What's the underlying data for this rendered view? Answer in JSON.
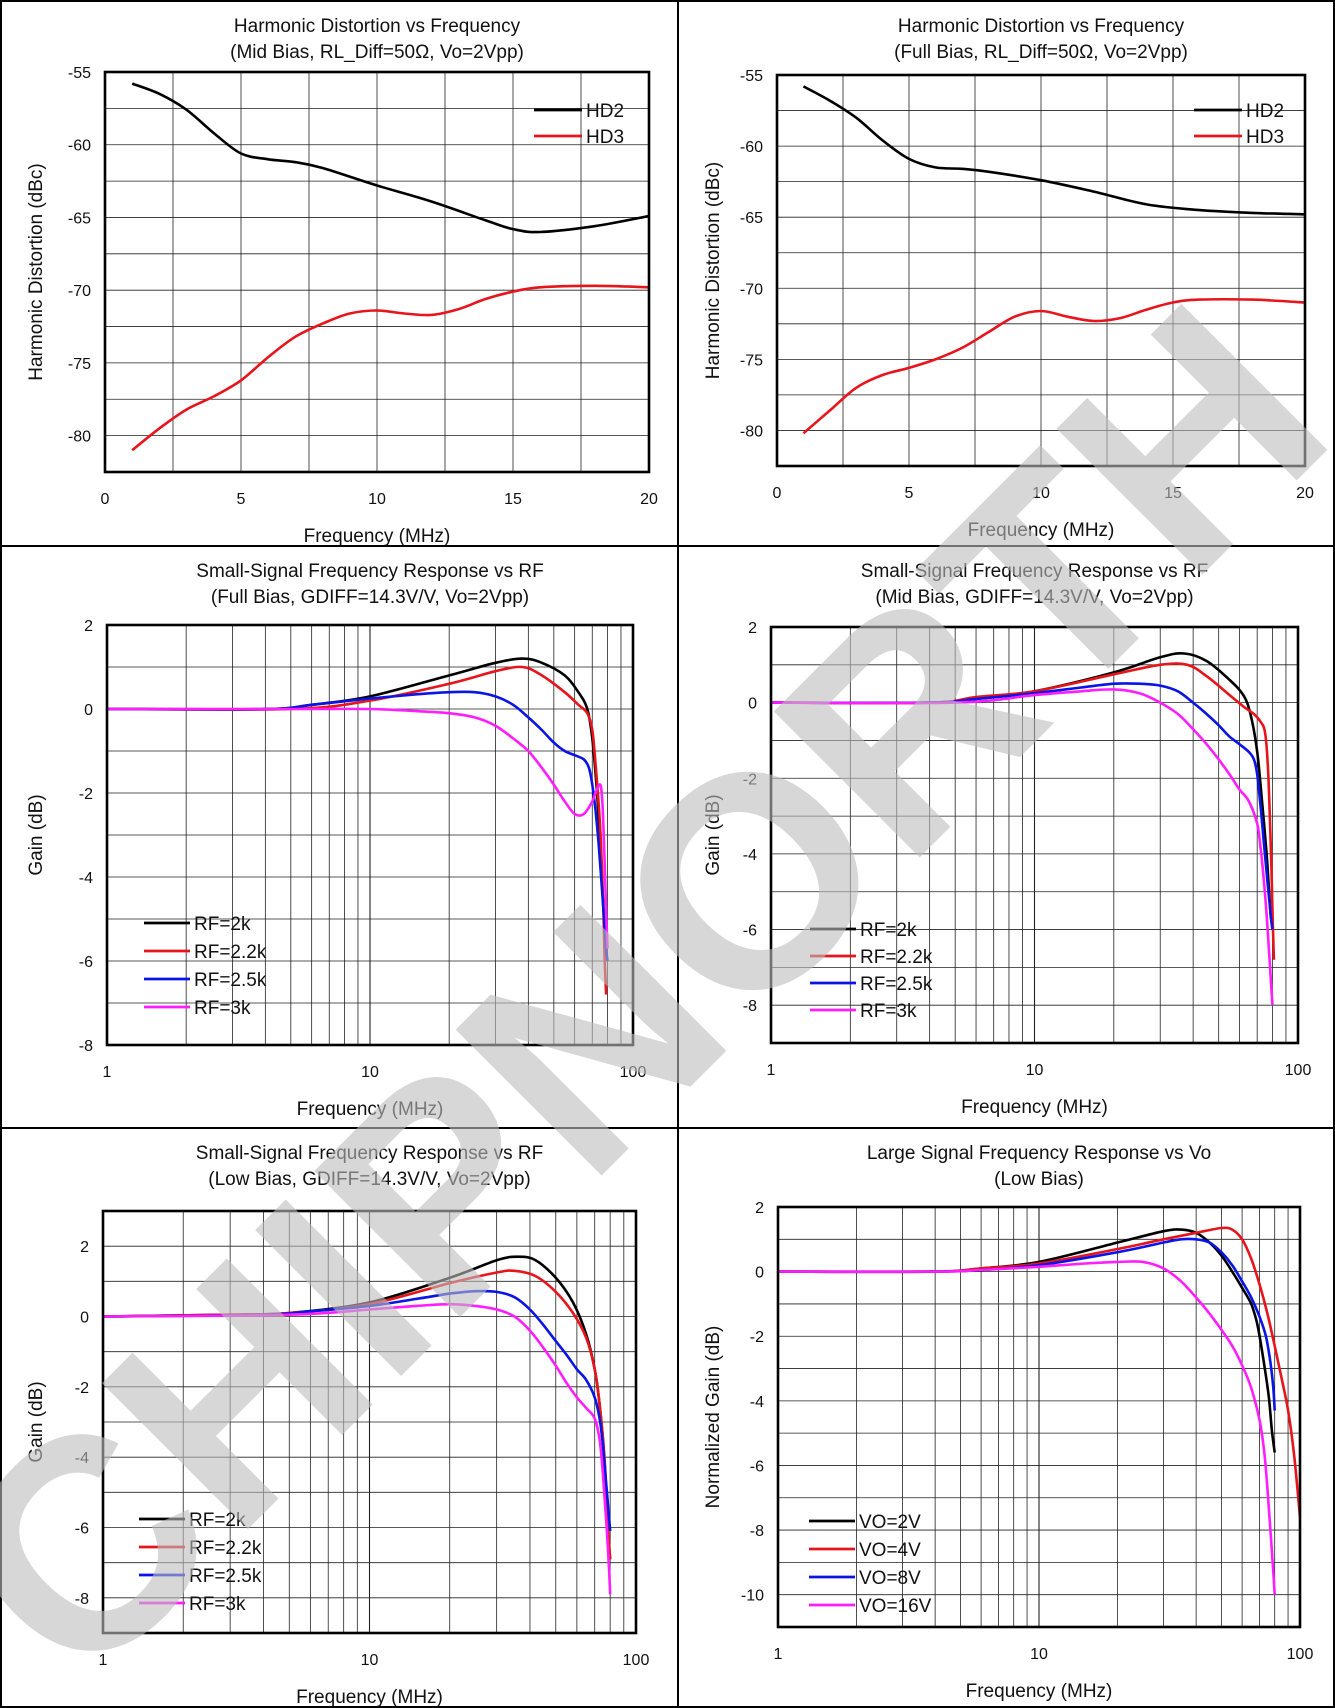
{
  "watermark": {
    "text": "CHIPNORTH",
    "color": "#bdbdbd"
  },
  "line_colors": {
    "black": "#000000",
    "red": "#e8141b",
    "blue": "#0a14e6",
    "magenta": "#ff1eff"
  },
  "chart_data": [
    {
      "type": "line",
      "title": "Harmonic Distortion vs Frequency",
      "subtitle": "(Mid Bias, RL_Diff=50Ω, Vo=2Vpp)",
      "xlabel": "Frequency (MHz)",
      "ylabel": "Harmonic Distortion (dBc)",
      "xscale": "linear",
      "xlim": [
        0,
        20
      ],
      "ylim": [
        -82.5,
        -55
      ],
      "xticks": [
        0,
        5,
        10,
        15,
        20
      ],
      "yticks": [
        -80,
        -75,
        -70,
        -65,
        -60,
        -55
      ],
      "grid": true,
      "legend": "top-right",
      "series": [
        {
          "name": "HD2",
          "color": "black",
          "x": [
            1,
            2,
            3,
            4,
            5,
            6,
            7,
            8,
            10,
            12,
            14,
            15,
            16,
            18,
            20
          ],
          "y": [
            -55.8,
            -56.5,
            -57.6,
            -59.2,
            -60.6,
            -61.0,
            -61.2,
            -61.6,
            -62.8,
            -63.9,
            -65.2,
            -65.8,
            -66.0,
            -65.6,
            -64.9
          ]
        },
        {
          "name": "HD3",
          "color": "red",
          "x": [
            1,
            2,
            3,
            4,
            5,
            6,
            7,
            8,
            9,
            10,
            11,
            12,
            13,
            14,
            15,
            16,
            18,
            20
          ],
          "y": [
            -81.0,
            -79.5,
            -78.2,
            -77.3,
            -76.2,
            -74.6,
            -73.2,
            -72.3,
            -71.6,
            -71.4,
            -71.6,
            -71.7,
            -71.3,
            -70.6,
            -70.1,
            -69.8,
            -69.7,
            -69.8
          ]
        }
      ]
    },
    {
      "type": "line",
      "title": "Harmonic Distortion vs Frequency",
      "subtitle": "(Full Bias, RL_Diff=50Ω, Vo=2Vpp)",
      "xlabel": "Frequency (MHz)",
      "ylabel": "Harmonic Distortion (dBc)",
      "xscale": "linear",
      "xlim": [
        0,
        20
      ],
      "ylim": [
        -82.5,
        -55
      ],
      "xticks": [
        0,
        5,
        10,
        15,
        20
      ],
      "yticks": [
        -80,
        -75,
        -70,
        -65,
        -60,
        -55
      ],
      "grid": true,
      "legend": "top-right",
      "series": [
        {
          "name": "HD2",
          "color": "black",
          "x": [
            1,
            2,
            3,
            4,
            5,
            6,
            7,
            8,
            10,
            12,
            14,
            16,
            18,
            20
          ],
          "y": [
            -55.8,
            -56.8,
            -58.0,
            -59.6,
            -60.9,
            -61.5,
            -61.6,
            -61.8,
            -62.4,
            -63.2,
            -64.1,
            -64.5,
            -64.7,
            -64.8
          ]
        },
        {
          "name": "HD3",
          "color": "red",
          "x": [
            1,
            2,
            3,
            4,
            5,
            6,
            7,
            8,
            9,
            10,
            11,
            12,
            13,
            14,
            15,
            16,
            18,
            20
          ],
          "y": [
            -80.2,
            -78.6,
            -77.0,
            -76.1,
            -75.6,
            -75.0,
            -74.2,
            -73.1,
            -72.0,
            -71.6,
            -72.0,
            -72.3,
            -72.1,
            -71.5,
            -71.0,
            -70.8,
            -70.8,
            -71.0
          ]
        }
      ]
    },
    {
      "type": "line",
      "title": "Small-Signal Frequency Response vs RF",
      "subtitle": "(Full Bias, GDIFF=14.3V/V, Vo=2Vpp)",
      "xlabel": "Frequency (MHz)",
      "ylabel": "Gain (dB)",
      "xscale": "log",
      "xlim": [
        1,
        100
      ],
      "ylim": [
        -8,
        2
      ],
      "xticks": [
        1,
        10,
        100
      ],
      "yticks": [
        -8,
        -6,
        -4,
        -2,
        0,
        2
      ],
      "grid": true,
      "legend": "bottom-left",
      "series": [
        {
          "name": "RF=2k",
          "color": "black",
          "x": [
            1,
            4,
            6,
            10,
            20,
            30,
            38,
            45,
            55,
            62,
            67,
            70,
            73,
            75,
            77,
            78
          ],
          "y": [
            0,
            0,
            0.1,
            0.3,
            0.8,
            1.1,
            1.2,
            1.1,
            0.8,
            0.4,
            0,
            -0.7,
            -2.0,
            -3.3,
            -4.6,
            -5.1
          ]
        },
        {
          "name": "RF=2.2k",
          "color": "red",
          "x": [
            1,
            5,
            10,
            20,
            30,
            38,
            45,
            55,
            62,
            67,
            70,
            72,
            75,
            77,
            78,
            79
          ],
          "y": [
            0,
            0,
            0.2,
            0.6,
            0.9,
            1.0,
            0.8,
            0.4,
            0.1,
            -0.1,
            -0.5,
            -1.3,
            -2.8,
            -4.6,
            -5.9,
            -6.8
          ]
        },
        {
          "name": "RF=2.5k",
          "color": "blue",
          "x": [
            1,
            4,
            6,
            10,
            15,
            20,
            25,
            30,
            35,
            40,
            45,
            50,
            55,
            60,
            65,
            68,
            70,
            72,
            74,
            76,
            78,
            79,
            80
          ],
          "y": [
            0,
            0,
            0.1,
            0.25,
            0.35,
            0.4,
            0.4,
            0.3,
            0.1,
            -0.2,
            -0.5,
            -0.8,
            -1.0,
            -1.1,
            -1.2,
            -1.4,
            -1.8,
            -2.4,
            -3.2,
            -4.2,
            -5.2,
            -5.7,
            -6.0
          ]
        },
        {
          "name": "RF=3k",
          "color": "magenta",
          "x": [
            1,
            5,
            10,
            15,
            20,
            25,
            30,
            35,
            40,
            45,
            50,
            55,
            60,
            65,
            70,
            73,
            75,
            76,
            77,
            78,
            79,
            80
          ],
          "y": [
            0,
            0,
            0,
            -0.05,
            -0.1,
            -0.2,
            -0.4,
            -0.7,
            -1.0,
            -1.4,
            -1.8,
            -2.2,
            -2.5,
            -2.5,
            -2.2,
            -1.9,
            -1.8,
            -2.0,
            -2.6,
            -3.6,
            -4.8,
            -5.7
          ]
        }
      ]
    },
    {
      "type": "line",
      "title": "Small-Signal Frequency Response vs RF",
      "subtitle": "(Mid Bias, GDIFF=14.3V/V, Vo=2Vpp)",
      "xlabel": "Frequency (MHz)",
      "ylabel": "Gain (dB)",
      "xscale": "log",
      "xlim": [
        1,
        100
      ],
      "ylim": [
        -9,
        2
      ],
      "xticks": [
        1,
        10,
        100
      ],
      "yticks": [
        -8,
        -6,
        -4,
        -2,
        0,
        2
      ],
      "grid": true,
      "legend": "bottom-left",
      "series": [
        {
          "name": "RF=2k",
          "color": "black",
          "x": [
            1,
            4,
            6,
            10,
            20,
            30,
            37,
            45,
            55,
            62,
            66,
            70,
            73,
            76,
            78,
            79,
            80
          ],
          "y": [
            0,
            0,
            0.1,
            0.3,
            0.8,
            1.2,
            1.3,
            1.1,
            0.6,
            0.2,
            -0.3,
            -1.3,
            -2.6,
            -4.0,
            -5.2,
            -5.7,
            -5.9
          ]
        },
        {
          "name": "RF=2.2k",
          "color": "red",
          "x": [
            1,
            4,
            6,
            10,
            20,
            30,
            38,
            45,
            55,
            62,
            68,
            72,
            75,
            77,
            79,
            80,
            81
          ],
          "y": [
            0,
            0,
            0.15,
            0.3,
            0.75,
            1.0,
            1.0,
            0.7,
            0.2,
            -0.1,
            -0.3,
            -0.5,
            -0.8,
            -1.8,
            -4.0,
            -5.5,
            -6.8
          ]
        },
        {
          "name": "RF=2.5k",
          "color": "blue",
          "x": [
            1,
            4,
            6,
            10,
            15,
            20,
            25,
            30,
            35,
            40,
            45,
            50,
            55,
            60,
            65,
            68,
            70,
            72,
            74,
            76,
            78,
            79,
            80
          ],
          "y": [
            0,
            0,
            0.1,
            0.25,
            0.4,
            0.5,
            0.5,
            0.45,
            0.3,
            0,
            -0.3,
            -0.6,
            -0.9,
            -1.1,
            -1.3,
            -1.5,
            -1.9,
            -2.7,
            -3.6,
            -4.5,
            -5.3,
            -5.7,
            -6.0
          ]
        },
        {
          "name": "RF=3k",
          "color": "magenta",
          "x": [
            1,
            5,
            10,
            15,
            20,
            25,
            30,
            35,
            40,
            45,
            50,
            55,
            60,
            65,
            70,
            72,
            74,
            76,
            78,
            79,
            80
          ],
          "y": [
            0,
            0,
            0.2,
            0.3,
            0.35,
            0.25,
            0,
            -0.3,
            -0.7,
            -1.1,
            -1.5,
            -1.9,
            -2.3,
            -2.6,
            -3.2,
            -3.8,
            -4.6,
            -5.6,
            -6.8,
            -7.4,
            -8.0
          ]
        }
      ]
    },
    {
      "type": "line",
      "title": "Small-Signal Frequency Response vs RF",
      "subtitle": "(Low Bias, GDIFF=14.3V/V, Vo=2Vpp)",
      "xlabel": "Frequency (MHz)",
      "ylabel": "Gain (dB)",
      "xscale": "log",
      "xlim": [
        1,
        100
      ],
      "ylim": [
        -9,
        3
      ],
      "xticks": [
        1,
        10,
        100
      ],
      "yticks": [
        -8,
        -6,
        -4,
        -2,
        0,
        2
      ],
      "grid": true,
      "legend": "bottom-left",
      "series": [
        {
          "name": "RF=2k",
          "color": "black",
          "x": [
            1,
            3,
            5,
            10,
            20,
            30,
            36,
            42,
            50,
            58,
            65,
            70,
            73,
            76,
            78,
            79,
            80
          ],
          "y": [
            0,
            0.05,
            0.1,
            0.4,
            1.1,
            1.6,
            1.7,
            1.6,
            1.1,
            0.4,
            -0.5,
            -1.5,
            -2.5,
            -4.0,
            -5.6,
            -6.4,
            -6.9
          ]
        },
        {
          "name": "RF=2.2k",
          "color": "red",
          "x": [
            1,
            3,
            5,
            10,
            20,
            30,
            35,
            42,
            50,
            58,
            65,
            70,
            73,
            76,
            78,
            79,
            80
          ],
          "y": [
            0,
            0.05,
            0.1,
            0.35,
            0.95,
            1.25,
            1.3,
            1.15,
            0.7,
            0.1,
            -0.6,
            -1.5,
            -2.5,
            -3.9,
            -5.5,
            -6.3,
            -6.9
          ]
        },
        {
          "name": "RF=2.5k",
          "color": "blue",
          "x": [
            1,
            4,
            6,
            10,
            15,
            20,
            25,
            30,
            35,
            40,
            45,
            50,
            55,
            60,
            65,
            70,
            73,
            75,
            77,
            79,
            80
          ],
          "y": [
            0,
            0.05,
            0.15,
            0.3,
            0.5,
            0.65,
            0.72,
            0.7,
            0.55,
            0.2,
            -0.25,
            -0.7,
            -1.1,
            -1.5,
            -1.8,
            -2.3,
            -2.9,
            -3.6,
            -4.6,
            -5.6,
            -6.1
          ]
        },
        {
          "name": "RF=3k",
          "color": "magenta",
          "x": [
            1,
            5,
            10,
            15,
            20,
            25,
            30,
            35,
            40,
            45,
            50,
            55,
            60,
            65,
            70,
            73,
            75,
            77,
            79,
            80
          ],
          "y": [
            0,
            0.05,
            0.2,
            0.3,
            0.35,
            0.3,
            0.2,
            0,
            -0.4,
            -0.9,
            -1.4,
            -1.9,
            -2.3,
            -2.6,
            -2.9,
            -3.5,
            -4.4,
            -5.6,
            -7.0,
            -7.9
          ]
        }
      ]
    },
    {
      "type": "line",
      "title": "Large Signal Frequency Response vs Vo",
      "subtitle": "(Low Bias)",
      "xlabel": "Frequency (MHz)",
      "ylabel": "Normalized Gain (dB)",
      "xscale": "log",
      "xlim": [
        1,
        100
      ],
      "ylim": [
        -11,
        2
      ],
      "xticks": [
        1,
        10,
        100
      ],
      "yticks": [
        -10,
        -8,
        -6,
        -4,
        -2,
        0,
        2
      ],
      "grid": true,
      "legend": "bottom-left",
      "series": [
        {
          "name": "VO=2V",
          "color": "black",
          "x": [
            1,
            4,
            6,
            10,
            20,
            30,
            35,
            40,
            45,
            50,
            55,
            60,
            65,
            68,
            70,
            73,
            76,
            78,
            80
          ],
          "y": [
            0,
            0,
            0.1,
            0.3,
            0.9,
            1.25,
            1.3,
            1.2,
            0.9,
            0.5,
            0,
            -0.5,
            -1.0,
            -1.5,
            -2.0,
            -2.9,
            -3.9,
            -4.9,
            -5.6
          ]
        },
        {
          "name": "VO=4V",
          "color": "red",
          "x": [
            1,
            4,
            6,
            10,
            20,
            30,
            40,
            50,
            55,
            60,
            65,
            70,
            75,
            80,
            85,
            90,
            95,
            100
          ],
          "y": [
            0,
            0,
            0.1,
            0.25,
            0.7,
            1.0,
            1.2,
            1.35,
            1.3,
            1.0,
            0.4,
            -0.4,
            -1.3,
            -2.3,
            -3.3,
            -4.3,
            -5.7,
            -7.6
          ]
        },
        {
          "name": "VO=8V",
          "color": "blue",
          "x": [
            1,
            4,
            6,
            10,
            20,
            30,
            35,
            40,
            45,
            50,
            55,
            60,
            65,
            70,
            74,
            77,
            79,
            80
          ],
          "y": [
            0,
            0,
            0.05,
            0.2,
            0.6,
            0.9,
            1.0,
            1.0,
            0.9,
            0.6,
            0.2,
            -0.3,
            -0.8,
            -1.4,
            -2.0,
            -2.8,
            -3.6,
            -4.3
          ]
        },
        {
          "name": "VO=16V",
          "color": "magenta",
          "x": [
            1,
            4,
            6,
            10,
            15,
            20,
            25,
            30,
            35,
            40,
            45,
            50,
            55,
            60,
            65,
            70,
            73,
            75,
            77,
            79,
            80
          ],
          "y": [
            0,
            0,
            0.05,
            0.15,
            0.25,
            0.3,
            0.3,
            0.1,
            -0.3,
            -0.8,
            -1.3,
            -1.8,
            -2.3,
            -2.9,
            -3.6,
            -4.6,
            -5.6,
            -6.7,
            -8.0,
            -9.3,
            -10.0
          ]
        }
      ]
    }
  ]
}
